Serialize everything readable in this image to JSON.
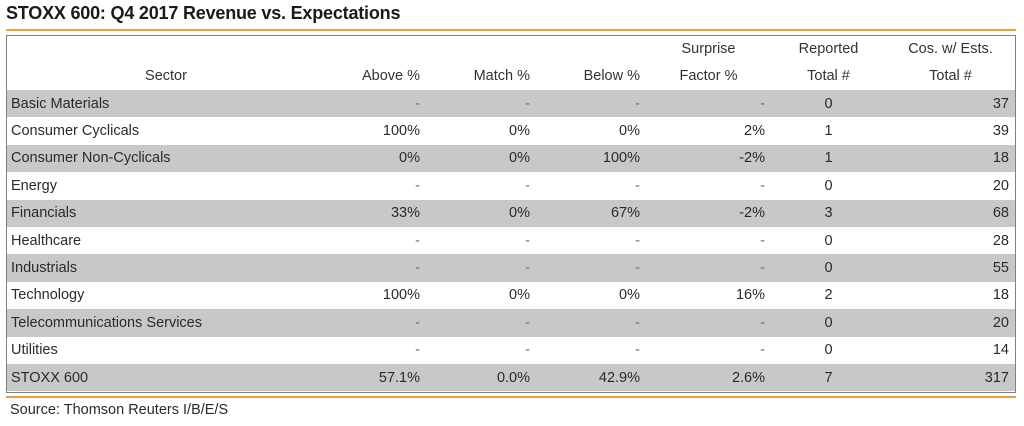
{
  "title": "STOXX 600: Q4 2017 Revenue vs. Expectations",
  "headers": {
    "sector": "Sector",
    "above": "Above %",
    "match": "Match %",
    "below": "Below %",
    "surprise_top": "Surprise",
    "surprise_bottom": "Factor %",
    "reported_top": "Reported",
    "reported_bottom": "Total #",
    "cos_top": "Cos. w/ Ests.",
    "cos_bottom": "Total #"
  },
  "rows": [
    {
      "sector": "Basic Materials",
      "above": "-",
      "match": "-",
      "below": "-",
      "surprise": "-",
      "reported": "0",
      "cos": "37"
    },
    {
      "sector": "Consumer Cyclicals",
      "above": "100%",
      "match": "0%",
      "below": "0%",
      "surprise": "2%",
      "reported": "1",
      "cos": "39"
    },
    {
      "sector": "Consumer Non-Cyclicals",
      "above": "0%",
      "match": "0%",
      "below": "100%",
      "surprise": "-2%",
      "reported": "1",
      "cos": "18"
    },
    {
      "sector": "Energy",
      "above": "-",
      "match": "-",
      "below": "-",
      "surprise": "-",
      "reported": "0",
      "cos": "20"
    },
    {
      "sector": "Financials",
      "above": "33%",
      "match": "0%",
      "below": "67%",
      "surprise": "-2%",
      "reported": "3",
      "cos": "68"
    },
    {
      "sector": "Healthcare",
      "above": "-",
      "match": "-",
      "below": "-",
      "surprise": "-",
      "reported": "0",
      "cos": "28"
    },
    {
      "sector": "Industrials",
      "above": "-",
      "match": "-",
      "below": "-",
      "surprise": "-",
      "reported": "0",
      "cos": "55"
    },
    {
      "sector": "Technology",
      "above": "100%",
      "match": "0%",
      "below": "0%",
      "surprise": "16%",
      "reported": "2",
      "cos": "18"
    },
    {
      "sector": "Telecommunications Services",
      "above": "-",
      "match": "-",
      "below": "-",
      "surprise": "-",
      "reported": "0",
      "cos": "20"
    },
    {
      "sector": "Utilities",
      "above": "-",
      "match": "-",
      "below": "-",
      "surprise": "-",
      "reported": "0",
      "cos": "14"
    }
  ],
  "total": {
    "sector": "STOXX 600",
    "above": "57.1%",
    "match": "0.0%",
    "below": "42.9%",
    "surprise": "2.6%",
    "reported": "7",
    "cos": "317"
  },
  "source": "Source: Thomson Reuters I/B/E/S",
  "colors": {
    "accent_rule": "#e8a33c",
    "shaded_row": "#c8c8c8",
    "frame_border": "#808080"
  }
}
